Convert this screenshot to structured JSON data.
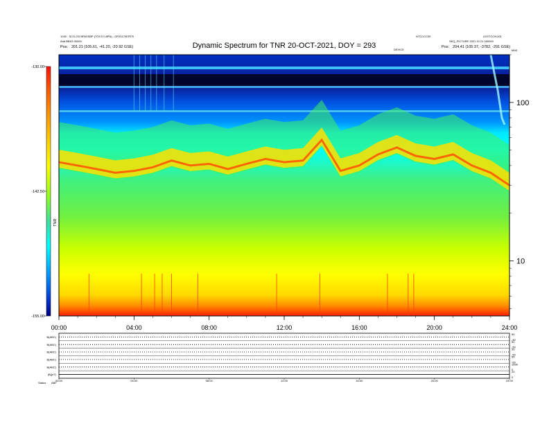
{
  "header": {
    "title": "Dynamic Spectrum for TNR 20-OCT-2021, DOY = 293",
    "left_line1": "1030 - SCG-GS BPASSBP (TOCS 0.8PN) - GP20170ERTR",
    "left_line2": "Add BBS3 00000",
    "left_line3_label": "Pos:",
    "left_line3_value": "201.21 (105.61, -41.20, -20.92 GSE)",
    "right_top_a": "NTCCCC00",
    "right_top_b": "LEGTCCN:001",
    "right_line2": "SEQ_PICTURE 2021 10 21 000000",
    "right_line3_label": "Pos:",
    "right_line3_value": "204.41 (105.37, -3782, -291 GSE)",
    "center_small": "DEVICE",
    "corner_small": "MA3"
  },
  "chart_data": [
    {
      "type": "heatmap",
      "title": "Dynamic Spectrum for TNR 20-OCT-2021, DOY = 293",
      "xlabel": "",
      "ylabel": "",
      "x_ticks": [
        "00:00",
        "04:00",
        "08:00",
        "12:00",
        "16:00",
        "20:00",
        "24:00"
      ],
      "x_range_hours": [
        0,
        24
      ],
      "y_scale": "log",
      "y_range": [
        4.5,
        200
      ],
      "y_ticks": [
        10,
        100
      ],
      "colorbar": {
        "label": "TNR",
        "ticks": [
          "-130.00",
          "-142.50",
          "-155.00"
        ],
        "range": [
          -155.0,
          -130.0
        ]
      },
      "colormap": [
        "#0000a0",
        "#0060ff",
        "#00ffff",
        "#40e0a0",
        "#80ff00",
        "#ffff00",
        "#ff8000",
        "#ff2000"
      ],
      "band_boundary_profile_hours": [
        0,
        1,
        2,
        3,
        4,
        5,
        6,
        7,
        8,
        9,
        10,
        11,
        12,
        13,
        14,
        15,
        16,
        17,
        18,
        19,
        20,
        21,
        22,
        23,
        24
      ],
      "band_boundary_profile_freq": [
        42,
        40,
        38,
        36,
        37,
        39,
        43,
        40,
        41,
        38,
        41,
        44,
        42,
        43,
        58,
        37,
        40,
        47,
        52,
        46,
        44,
        47,
        40,
        36,
        30
      ]
    },
    {
      "type": "line",
      "panels": [
        {
          "label": "B(ABC)",
          "right_ticks": [
            "50",
            "-50"
          ]
        },
        {
          "label": "B(ABC)",
          "right_ticks": [
            "50",
            "-50"
          ]
        },
        {
          "label": "B(ABC)",
          "right_ticks": [
            "50",
            "-50"
          ]
        },
        {
          "label": "B(ABC)",
          "right_ticks": [
            "50",
            "-50"
          ]
        },
        {
          "label": "B(ABC)",
          "right_ticks": [
            "1000",
            "0"
          ]
        },
        {
          "label": "|B|(nT)",
          "right_ticks": [
            "20",
            "0"
          ]
        }
      ],
      "x_ticks": [
        "00:00",
        "04:00",
        "08:00",
        "12:00",
        "16:00",
        "20:00",
        "24:00"
      ],
      "status_label": "Status",
      "status_value": "ABF"
    }
  ]
}
